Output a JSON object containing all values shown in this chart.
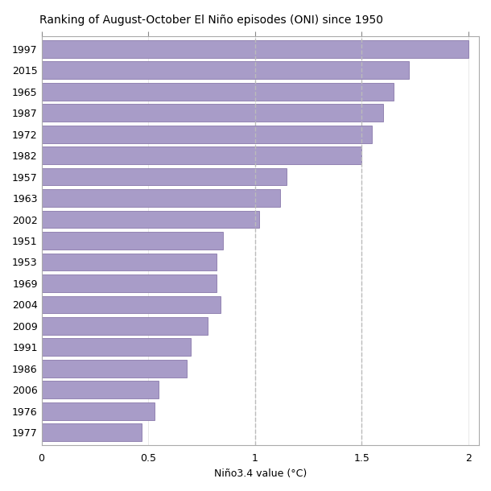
{
  "title": "Ranking of August-October El Niño episodes (ONI) since 1950",
  "xlabel": "Niño3.4 value (°C)",
  "years": [
    "1997",
    "2015",
    "1965",
    "1987",
    "1972",
    "1982",
    "1957",
    "1963",
    "2002",
    "1951",
    "1953",
    "1969",
    "2004",
    "2009",
    "1991",
    "1986",
    "2006",
    "1976",
    "1977"
  ],
  "values": [
    2.0,
    1.72,
    1.65,
    1.6,
    1.55,
    1.5,
    1.15,
    1.12,
    1.02,
    0.85,
    0.82,
    0.82,
    0.84,
    0.78,
    0.7,
    0.68,
    0.55,
    0.53,
    0.47
  ],
  "bar_color": "#a89cc8",
  "bar_edge_color": "#8878aa",
  "xlim": [
    0,
    2.05
  ],
  "xticks": [
    0,
    0.5,
    1.0,
    1.5,
    2.0
  ],
  "xticklabels": [
    "0",
    "0.5",
    "1",
    "1.5",
    "2"
  ],
  "dashed_lines": [
    1.0,
    1.5
  ],
  "dashed_color": "#bbbbbb",
  "background_color": "#ffffff",
  "title_fontsize": 10,
  "axis_label_fontsize": 9,
  "tick_fontsize": 9,
  "bar_height": 0.82
}
